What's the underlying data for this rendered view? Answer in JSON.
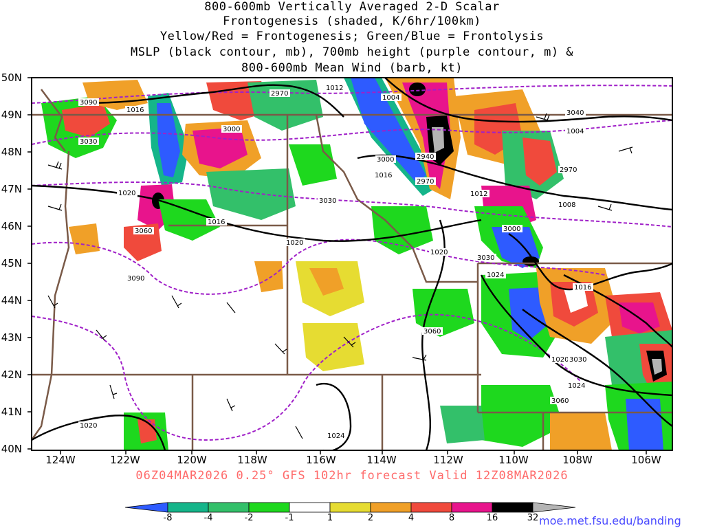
{
  "title_lines": [
    "800-600mb Vertically Averaged 2-D Scalar",
    "Frontogenesis (shaded, K/6hr/100km)",
    "Yellow/Red = Frontogenesis;  Green/Blue = Frontolysis",
    "MSLP (black contour, mb), 700mb height (purple contour, m) &",
    "800-600mb Mean Wind (barb, kt)"
  ],
  "lat_labels": [
    "50N",
    "49N",
    "48N",
    "47N",
    "46N",
    "45N",
    "44N",
    "43N",
    "42N",
    "41N",
    "40N"
  ],
  "lon_labels": [
    "124W",
    "122W",
    "120W",
    "118W",
    "116W",
    "114W",
    "112W",
    "110W",
    "108W",
    "106W"
  ],
  "subtitle": "06Z04MAR2026 0.25° GFS 102hr forecast Valid 12Z08MAR2026",
  "credit": "moe.met.fsu.edu/banding",
  "colorbar": {
    "labels": [
      "-8",
      "-4",
      "-2",
      "-1",
      "1",
      "2",
      "4",
      "8",
      "16",
      "32"
    ],
    "colors": [
      "#2e5bff",
      "#15b58a",
      "#33c06a",
      "#1ed81e",
      "#ffffff",
      "#e6dc32",
      "#f0a028",
      "#f04a3c",
      "#e8148c",
      "#000000",
      "#b4b4b4"
    ]
  },
  "contour_labels": {
    "mslp": [
      "1016",
      "1012",
      "1004",
      "1004",
      "1020",
      "1016",
      "1016",
      "1012",
      "1008",
      "1020",
      "1020",
      "1024",
      "1016",
      "1020",
      "1024",
      "1020",
      "1024"
    ],
    "height": [
      "3090",
      "3030",
      "3000",
      "2970",
      "3000",
      "2940",
      "2970",
      "3030",
      "2970",
      "3040",
      "3060",
      "3090",
      "3030",
      "3000",
      "3060",
      "3030",
      "3060"
    ]
  },
  "legend_colors": {
    "mslp": "#000000",
    "height": "#a020c8",
    "borders": "#7a5a48"
  }
}
